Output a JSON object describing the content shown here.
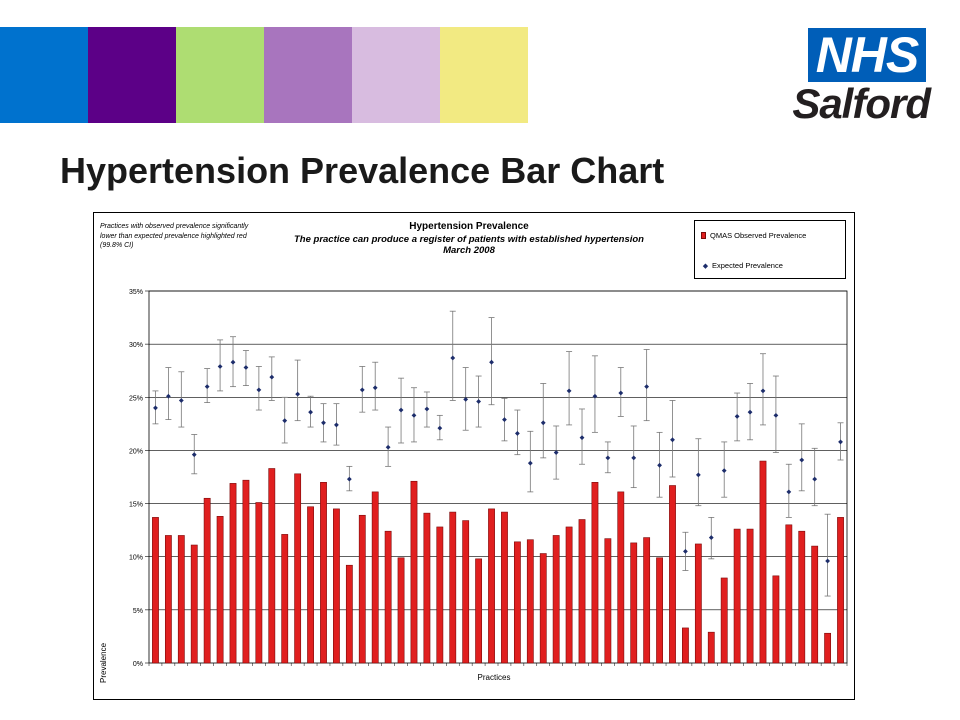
{
  "slide": {
    "title": "Hypertension Prevalence Bar Chart",
    "color_strip": [
      "#0072ce",
      "#5c0087",
      "#aedd72",
      "#a875be",
      "#d8bce0",
      "#f2ea82"
    ]
  },
  "logo": {
    "box_text": "NHS",
    "org_text": "Salford"
  },
  "chart_data": {
    "type": "bar",
    "title": "Hypertension Prevalence",
    "subtitle": "The practice can produce a register of patients with established hypertension",
    "subtitle2": "March 2008",
    "note": "Practices with observed prevalence significantly lower than expected prevalence highlighted red (99.8% CI)",
    "xlabel": "Practices",
    "ylabel": "Prevalence",
    "ylim": [
      0,
      35
    ],
    "yticks": [
      "0%",
      "5%",
      "10%",
      "15%",
      "20%",
      "25%",
      "30%",
      "35%"
    ],
    "grid": true,
    "legend_position": "top-right",
    "colors": {
      "bar": "#e01f1f",
      "bar_border": "#7a0a0a",
      "marker": "#1d2d6b",
      "error": "#777777",
      "plot_bg": "#ffffff"
    },
    "series": [
      {
        "name": "QMAS Observed Prevalence",
        "type": "bar",
        "values": [
          13.7,
          12.0,
          12.0,
          11.1,
          15.5,
          13.8,
          16.9,
          17.2,
          15.1,
          18.3,
          12.1,
          17.8,
          14.7,
          17.0,
          14.5,
          9.2,
          13.9,
          16.1,
          12.4,
          9.9,
          17.1,
          14.1,
          12.8,
          14.2,
          13.4,
          9.8,
          14.5,
          14.2,
          11.4,
          11.6,
          10.3,
          12.0,
          12.8,
          13.5,
          17.0,
          11.7,
          16.1,
          11.3,
          11.8,
          9.9,
          16.7,
          3.3,
          11.2,
          2.9,
          8.0,
          12.6,
          12.6,
          19.0,
          8.2,
          13.0,
          12.4,
          11.0,
          2.8,
          13.7
        ]
      },
      {
        "name": "Expected Prevalence",
        "type": "scatter",
        "values": [
          24.0,
          25.1,
          24.7,
          19.6,
          26.0,
          27.9,
          28.3,
          27.8,
          25.7,
          26.9,
          22.8,
          25.3,
          23.6,
          22.6,
          22.4,
          17.3,
          25.7,
          25.9,
          20.3,
          23.8,
          23.3,
          23.9,
          22.1,
          28.7,
          24.8,
          24.6,
          28.3,
          22.9,
          21.6,
          18.8,
          22.6,
          19.8,
          25.6,
          21.2,
          25.1,
          19.3,
          25.4,
          19.3,
          26.0,
          18.6,
          21.0,
          10.5,
          17.7,
          11.8,
          18.1,
          23.2,
          23.6,
          25.6,
          23.3,
          16.1,
          19.1,
          17.3,
          9.6,
          20.8
        ],
        "error_low": [
          22.5,
          22.9,
          22.2,
          17.8,
          24.5,
          25.6,
          26.0,
          26.1,
          23.8,
          24.7,
          20.7,
          22.8,
          22.2,
          20.8,
          20.5,
          16.2,
          23.6,
          23.8,
          18.5,
          20.7,
          20.8,
          22.2,
          21.0,
          24.7,
          21.9,
          22.2,
          24.3,
          20.9,
          19.6,
          16.1,
          19.3,
          17.3,
          22.4,
          18.7,
          21.7,
          17.9,
          23.2,
          16.5,
          22.8,
          15.6,
          17.5,
          8.7,
          14.8,
          9.8,
          15.6,
          20.9,
          21.0,
          22.4,
          19.8,
          13.7,
          16.2,
          14.8,
          6.3,
          19.1
        ],
        "error_high": [
          25.6,
          27.8,
          27.4,
          21.5,
          27.7,
          30.4,
          30.7,
          29.4,
          27.9,
          28.8,
          25.0,
          28.5,
          25.1,
          24.4,
          24.4,
          18.5,
          27.9,
          28.3,
          22.2,
          26.8,
          25.9,
          25.5,
          23.3,
          33.1,
          27.8,
          27.0,
          32.5,
          24.9,
          23.8,
          21.8,
          26.3,
          22.3,
          29.3,
          23.9,
          28.9,
          20.8,
          27.8,
          22.3,
          29.5,
          21.7,
          24.7,
          12.3,
          21.1,
          13.7,
          20.8,
          25.4,
          26.3,
          29.1,
          27.0,
          18.7,
          22.5,
          20.2,
          14.0,
          22.6
        ]
      }
    ]
  }
}
